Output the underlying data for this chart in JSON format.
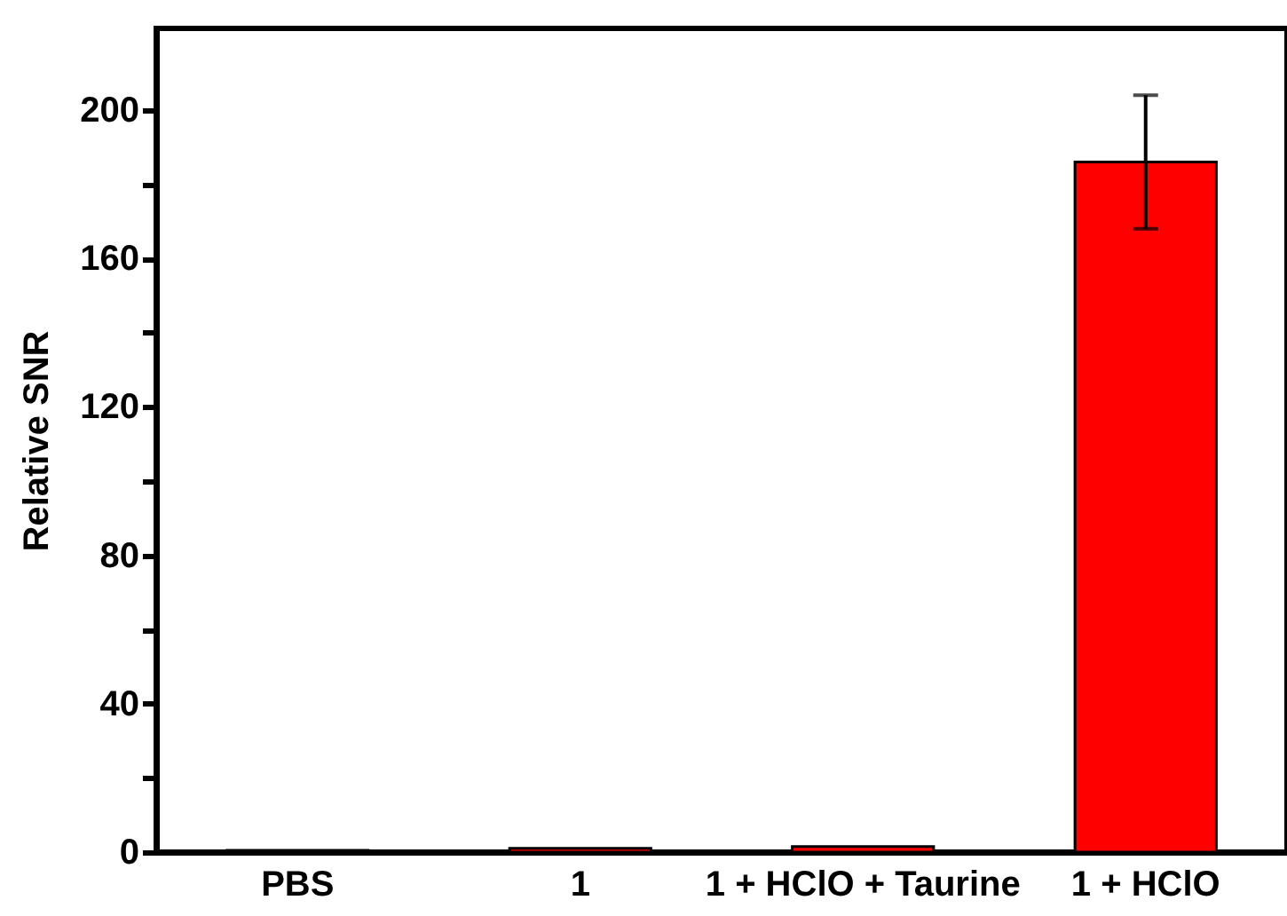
{
  "chart_data": {
    "type": "bar",
    "ylabel": "Relative SNR",
    "categories": [
      "PBS",
      "1",
      "1 + HClO + Taurine",
      "1 + HClO"
    ],
    "values": [
      0.5,
      1,
      1.5,
      186
    ],
    "errors": [
      null,
      null,
      null,
      18
    ],
    "color": "#ff0000",
    "ylim": [
      0,
      222
    ],
    "yticks": [
      0,
      {
        "value": 20,
        "label": null
      },
      40,
      {
        "value": 60,
        "label": null
      },
      80,
      {
        "value": 100,
        "label": null
      },
      120,
      {
        "value": 140,
        "label": null
      },
      160,
      {
        "value": 180,
        "label": null
      },
      200
    ],
    "grid": false
  }
}
